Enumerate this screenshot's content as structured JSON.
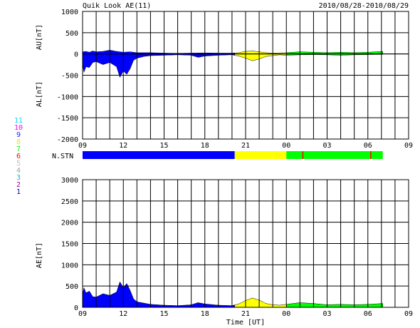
{
  "header": {
    "title": "Quik Look AE(11)",
    "date_range": "2010/08/28-2010/08/29"
  },
  "legend_numbers": {
    "items": [
      {
        "label": "11",
        "color": "#00d8ff"
      },
      {
        "label": "10",
        "color": "#ff00ff"
      },
      {
        "label": "9",
        "color": "#2020ff"
      },
      {
        "label": "8",
        "color": "#e8e800"
      },
      {
        "label": "7",
        "color": "#00ff00"
      },
      {
        "label": "6",
        "color": "#ff0000"
      },
      {
        "label": "5",
        "color": "#c0c0c0"
      },
      {
        "label": "4",
        "color": "#a0a0a0"
      },
      {
        "label": "3",
        "color": "#00c0c0"
      },
      {
        "label": "2",
        "color": "#a000a0"
      },
      {
        "label": "1",
        "color": "#0000a0"
      }
    ]
  },
  "colors": {
    "blue": "#0000ff",
    "yellow": "#ffff00",
    "green": "#00ff00",
    "red": "#ff0000",
    "grid": "#000000"
  },
  "x_axis": {
    "tick_labels": [
      "09",
      "12",
      "15",
      "18",
      "21",
      "00",
      "03",
      "06",
      "09"
    ],
    "label": "Time [UT]"
  },
  "chart_data": [
    {
      "type": "area",
      "ylabel_upper": "AU[nT]",
      "ylabel_lower": "AL[nT]",
      "ylim": [
        -2000,
        1000
      ],
      "yticks": [
        1000,
        500,
        0,
        -500,
        -1000,
        -1500,
        -2000
      ],
      "xlim": [
        0,
        24
      ],
      "segments": [
        {
          "color": "blue",
          "x_start": 0,
          "x_end": 11.2
        },
        {
          "color": "yellow",
          "x_start": 11.2,
          "x_end": 15.0
        },
        {
          "color": "green",
          "x_start": 15.0,
          "x_end": 22.1
        }
      ],
      "au": {
        "x": [
          0,
          0.25,
          0.5,
          0.75,
          1.0,
          1.5,
          2.0,
          2.5,
          3.0,
          3.5,
          4.0,
          5.0,
          6.0,
          7.0,
          8.0,
          9.0,
          10.0,
          11.0,
          11.5,
          12.0,
          12.5,
          13.0,
          13.5,
          14.0,
          14.5,
          15.0,
          16.0,
          17.0,
          18.0,
          19.0,
          20.0,
          21.0,
          22.1
        ],
        "values": [
          50,
          60,
          40,
          70,
          50,
          60,
          90,
          60,
          40,
          50,
          30,
          30,
          20,
          15,
          20,
          25,
          20,
          20,
          30,
          60,
          70,
          50,
          30,
          20,
          25,
          30,
          50,
          40,
          30,
          40,
          30,
          40,
          60
        ]
      },
      "al": {
        "x": [
          0,
          0.1,
          0.25,
          0.5,
          0.75,
          1.0,
          1.5,
          2.0,
          2.5,
          2.75,
          3.0,
          3.25,
          3.5,
          3.75,
          4.0,
          4.5,
          5.0,
          6.0,
          7.0,
          8.0,
          8.5,
          9.0,
          10.0,
          11.0,
          11.5,
          12.0,
          12.5,
          13.0,
          13.5,
          14.0,
          14.5,
          15.0,
          16.0,
          17.0,
          18.0,
          19.0,
          20.0,
          21.0,
          22.1
        ],
        "values": [
          -250,
          -430,
          -300,
          -320,
          -200,
          -180,
          -250,
          -200,
          -300,
          -550,
          -400,
          -480,
          -350,
          -150,
          -100,
          -60,
          -40,
          -30,
          -20,
          -30,
          -80,
          -50,
          -30,
          -20,
          -50,
          -100,
          -160,
          -120,
          -60,
          -40,
          -20,
          -30,
          -20,
          -15,
          -20,
          -30,
          -20,
          -15,
          -10
        ]
      }
    },
    {
      "type": "bar",
      "label": "N.STN",
      "segments": [
        {
          "color": "blue",
          "x_start": 0,
          "x_end": 11.2
        },
        {
          "color": "yellow",
          "x_start": 11.2,
          "x_end": 15.0
        },
        {
          "color": "green",
          "x_start": 15.0,
          "x_end": 22.1
        }
      ],
      "markers": [
        {
          "color": "red",
          "x": 16.2
        },
        {
          "color": "red",
          "x": 21.2
        }
      ]
    },
    {
      "type": "area",
      "ylabel": "AE[nT]",
      "ylim": [
        0,
        3000
      ],
      "yticks": [
        3000,
        2500,
        2000,
        1500,
        1000,
        500,
        0
      ],
      "xlim": [
        0,
        24
      ],
      "segments": [
        {
          "color": "blue",
          "x_start": 0,
          "x_end": 11.2
        },
        {
          "color": "yellow",
          "x_start": 11.2,
          "x_end": 15.0
        },
        {
          "color": "green",
          "x_start": 15.0,
          "x_end": 22.1
        }
      ],
      "ae": {
        "x": [
          0,
          0.1,
          0.25,
          0.5,
          0.75,
          1.0,
          1.5,
          2.0,
          2.5,
          2.75,
          3.0,
          3.25,
          3.5,
          3.75,
          4.0,
          4.5,
          5.0,
          6.0,
          7.0,
          8.0,
          8.5,
          9.0,
          10.0,
          11.0,
          11.5,
          12.0,
          12.5,
          13.0,
          13.5,
          14.0,
          14.5,
          15.0,
          16.0,
          17.0,
          18.0,
          19.0,
          20.0,
          21.0,
          22.1
        ],
        "values": [
          300,
          460,
          340,
          380,
          250,
          240,
          320,
          280,
          360,
          600,
          460,
          560,
          400,
          200,
          130,
          100,
          70,
          50,
          40,
          60,
          110,
          80,
          50,
          40,
          80,
          160,
          220,
          170,
          90,
          60,
          50,
          70,
          110,
          90,
          60,
          70,
          60,
          70,
          90
        ]
      }
    }
  ]
}
